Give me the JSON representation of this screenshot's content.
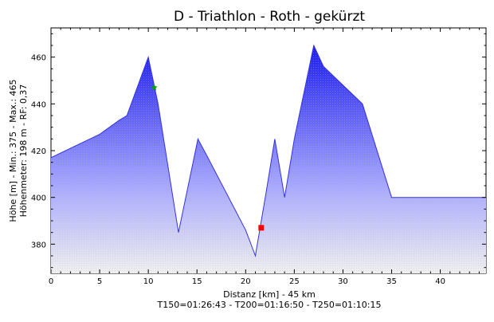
{
  "chart_data": {
    "type": "area",
    "title": "D - Triathlon - Roth - gekürzt",
    "xlabel": "Distanz [km] - 45 km",
    "xlabel2": "T150=01:26:43 - T200=01:16:50 - T250=01:10:15",
    "ylabel": "Höhe [m] - Min.: 375 - Max.: 465",
    "ylabel2": "Höhenmeter: 198 m - RF: 0,37",
    "xlim": [
      0,
      44.7
    ],
    "ylim": [
      367.5,
      472.5
    ],
    "x_ticks": [
      "0",
      "5",
      "10",
      "15",
      "20",
      "25",
      "30",
      "35",
      "40"
    ],
    "y_ticks": [
      "380",
      "400",
      "420",
      "440",
      "460"
    ],
    "grid": false,
    "series": [
      {
        "x": [
          0,
          2,
          4,
          5,
          6,
          7,
          7.8,
          10,
          11,
          13.1,
          15.1,
          16,
          18,
          20,
          21,
          22.1,
          23,
          24,
          25,
          27,
          28,
          29,
          32,
          35,
          36,
          40,
          44.7
        ],
        "y": [
          417,
          421,
          425,
          427,
          430,
          433,
          435,
          460,
          440,
          385,
          425,
          418,
          402,
          386,
          375,
          402,
          425,
          400,
          425,
          465,
          456,
          452,
          440,
          400,
          400,
          400,
          400
        ]
      }
    ],
    "markers": [
      {
        "shape": "star",
        "x": 10.6,
        "y": 447,
        "color": "#00a000"
      },
      {
        "shape": "square",
        "x": 21.6,
        "y": 387,
        "color": "#ff0000"
      }
    ],
    "colors": {
      "line": "#3333dd",
      "fill_top": "#1c1cf0",
      "fill_mid": "#a8a8ff",
      "fill_bottom": "#f0f0f0"
    }
  }
}
